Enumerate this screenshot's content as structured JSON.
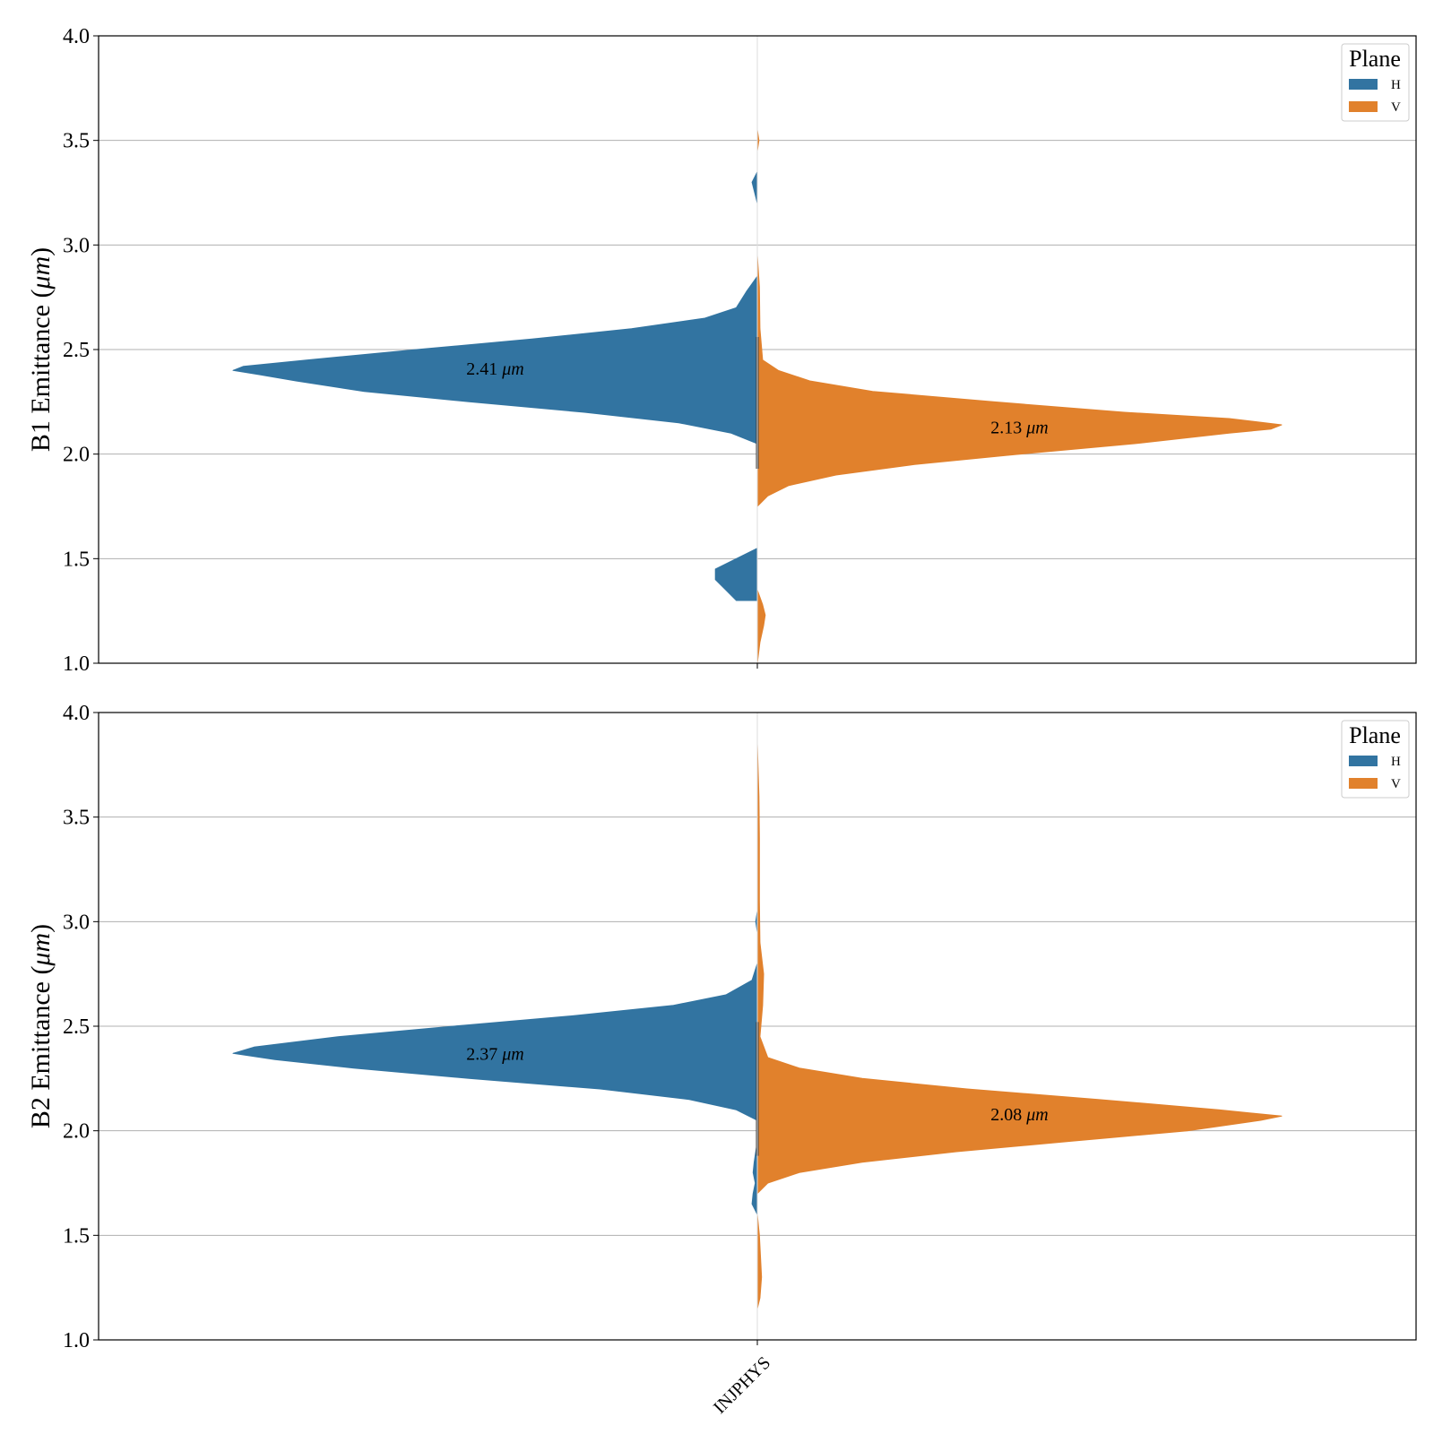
{
  "chart_data": [
    {
      "type": "violin",
      "ylabel_text": "B1 Emittance (",
      "ylabel_unit": "μm",
      "ylabel_close": ")",
      "ylim": [
        1.0,
        4.0
      ],
      "yticks": [
        "1.0",
        "1.5",
        "2.0",
        "2.5",
        "3.0",
        "3.5",
        "4.0"
      ],
      "grid": true,
      "categories": [
        "INJPHYS"
      ],
      "legend": {
        "title": "Plane",
        "entries": [
          "H",
          "V"
        ],
        "placement": "top-right"
      },
      "series": [
        {
          "name": "H",
          "color": "#3274a1",
          "side": "left",
          "median": 2.41,
          "annotation": "2.41 ",
          "annotation_unit": "μm",
          "profile": [
            [
              1.3,
              0.04
            ],
            [
              1.35,
              0.06
            ],
            [
              1.4,
              0.08
            ],
            [
              1.45,
              0.08
            ],
            [
              1.5,
              0.04
            ],
            [
              1.55,
              0.0
            ],
            [
              2.05,
              0.0
            ],
            [
              2.1,
              0.05
            ],
            [
              2.15,
              0.15
            ],
            [
              2.2,
              0.33
            ],
            [
              2.25,
              0.55
            ],
            [
              2.3,
              0.75
            ],
            [
              2.35,
              0.88
            ],
            [
              2.38,
              0.95
            ],
            [
              2.4,
              1.0
            ],
            [
              2.42,
              0.98
            ],
            [
              2.45,
              0.86
            ],
            [
              2.5,
              0.65
            ],
            [
              2.55,
              0.43
            ],
            [
              2.6,
              0.24
            ],
            [
              2.65,
              0.1
            ],
            [
              2.7,
              0.04
            ],
            [
              2.78,
              0.02
            ],
            [
              2.85,
              0.0
            ],
            [
              3.2,
              0.0
            ],
            [
              3.3,
              0.01
            ],
            [
              3.35,
              0.0
            ]
          ]
        },
        {
          "name": "V",
          "color": "#e1812c",
          "side": "right",
          "median": 2.13,
          "annotation": "2.13 ",
          "annotation_unit": "μm",
          "profile": [
            [
              1.0,
              0.0
            ],
            [
              1.1,
              0.005
            ],
            [
              1.18,
              0.012
            ],
            [
              1.23,
              0.015
            ],
            [
              1.28,
              0.01
            ],
            [
              1.35,
              0.0
            ],
            [
              1.75,
              0.0
            ],
            [
              1.8,
              0.02
            ],
            [
              1.85,
              0.06
            ],
            [
              1.9,
              0.15
            ],
            [
              1.95,
              0.3
            ],
            [
              2.0,
              0.5
            ],
            [
              2.05,
              0.72
            ],
            [
              2.1,
              0.9
            ],
            [
              2.12,
              0.98
            ],
            [
              2.14,
              1.0
            ],
            [
              2.17,
              0.9
            ],
            [
              2.2,
              0.7
            ],
            [
              2.25,
              0.45
            ],
            [
              2.3,
              0.22
            ],
            [
              2.35,
              0.1
            ],
            [
              2.4,
              0.04
            ],
            [
              2.45,
              0.01
            ],
            [
              2.6,
              0.005
            ],
            [
              2.8,
              0.004
            ],
            [
              2.95,
              0.0
            ],
            [
              3.45,
              0.0
            ],
            [
              3.5,
              0.003
            ],
            [
              3.55,
              0.0
            ]
          ]
        }
      ]
    },
    {
      "type": "violin",
      "ylabel_text": "B2 Emittance (",
      "ylabel_unit": "μm",
      "ylabel_close": ")",
      "ylim": [
        1.0,
        4.0
      ],
      "yticks": [
        "1.0",
        "1.5",
        "2.0",
        "2.5",
        "3.0",
        "3.5",
        "4.0"
      ],
      "grid": true,
      "categories": [
        "INJPHYS"
      ],
      "legend": {
        "title": "Plane",
        "entries": [
          "H",
          "V"
        ],
        "placement": "top-right"
      },
      "series": [
        {
          "name": "H",
          "color": "#3274a1",
          "side": "left",
          "median": 2.37,
          "annotation": "2.37 ",
          "annotation_unit": "μm",
          "profile": [
            [
              1.6,
              0.0
            ],
            [
              1.65,
              0.01
            ],
            [
              1.7,
              0.008
            ],
            [
              1.75,
              0.004
            ],
            [
              1.8,
              0.008
            ],
            [
              1.85,
              0.006
            ],
            [
              1.95,
              0.0
            ],
            [
              2.05,
              0.0
            ],
            [
              2.1,
              0.04
            ],
            [
              2.15,
              0.13
            ],
            [
              2.2,
              0.3
            ],
            [
              2.25,
              0.55
            ],
            [
              2.3,
              0.77
            ],
            [
              2.34,
              0.92
            ],
            [
              2.37,
              1.0
            ],
            [
              2.4,
              0.96
            ],
            [
              2.45,
              0.8
            ],
            [
              2.5,
              0.58
            ],
            [
              2.55,
              0.35
            ],
            [
              2.6,
              0.16
            ],
            [
              2.65,
              0.06
            ],
            [
              2.72,
              0.01
            ],
            [
              2.8,
              0.0
            ],
            [
              2.95,
              0.0
            ],
            [
              3.0,
              0.003
            ],
            [
              3.05,
              0.0
            ]
          ]
        },
        {
          "name": "V",
          "color": "#e1812c",
          "side": "right",
          "median": 2.08,
          "annotation": "2.08 ",
          "annotation_unit": "μm",
          "profile": [
            [
              1.15,
              0.0
            ],
            [
              1.2,
              0.005
            ],
            [
              1.3,
              0.008
            ],
            [
              1.4,
              0.006
            ],
            [
              1.5,
              0.004
            ],
            [
              1.6,
              0.0
            ],
            [
              1.7,
              0.0
            ],
            [
              1.75,
              0.02
            ],
            [
              1.8,
              0.08
            ],
            [
              1.85,
              0.2
            ],
            [
              1.9,
              0.38
            ],
            [
              1.95,
              0.6
            ],
            [
              2.0,
              0.82
            ],
            [
              2.05,
              0.96
            ],
            [
              2.07,
              1.0
            ],
            [
              2.1,
              0.88
            ],
            [
              2.15,
              0.65
            ],
            [
              2.2,
              0.4
            ],
            [
              2.25,
              0.2
            ],
            [
              2.3,
              0.08
            ],
            [
              2.35,
              0.02
            ],
            [
              2.45,
              0.005
            ],
            [
              2.6,
              0.01
            ],
            [
              2.75,
              0.012
            ],
            [
              2.9,
              0.005
            ],
            [
              3.1,
              0.004
            ],
            [
              3.4,
              0.004
            ],
            [
              3.6,
              0.003
            ],
            [
              3.85,
              0.0
            ]
          ]
        }
      ]
    }
  ]
}
